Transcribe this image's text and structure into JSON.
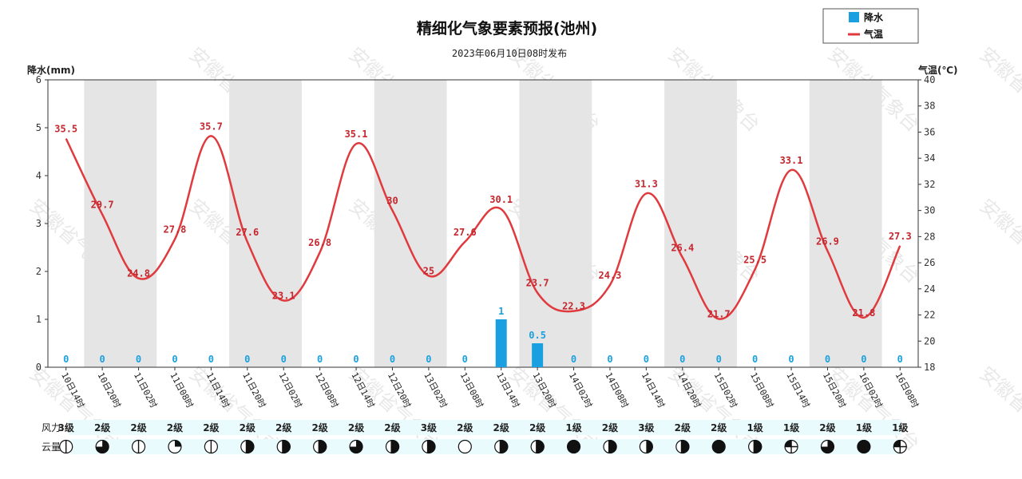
{
  "chart_data": {
    "type": "line",
    "title": "精细化气象要素预报(池州)",
    "subtitle": "2023年06月10日08时发布",
    "ylabel_left": "降水(mm)",
    "ylabel_right": "气温(℃)",
    "ylim_left": [
      0,
      6
    ],
    "ylim_right": [
      18,
      40
    ],
    "yticks_left": [
      0,
      1,
      2,
      3,
      4,
      5,
      6
    ],
    "yticks_right": [
      18,
      20,
      22,
      24,
      26,
      28,
      30,
      32,
      34,
      36,
      38,
      40
    ],
    "legend_placement": "top-right",
    "legend": [
      {
        "name": "降水",
        "color": "#1aa0e0"
      },
      {
        "name": "气温",
        "color": "#e03a3e"
      }
    ],
    "x": [
      "10日14时",
      "10日20时",
      "11日02时",
      "11日08时",
      "11日14时",
      "11日20时",
      "12日02时",
      "12日08时",
      "12日14时",
      "12日20时",
      "13日02时",
      "13日08时",
      "13日14时",
      "13日20时",
      "14日02时",
      "14日08时",
      "14日14时",
      "14日20时",
      "15日02时",
      "15日08时",
      "15日14时",
      "15日20时",
      "16日02时",
      "16日08时"
    ],
    "series": [
      {
        "name": "降水",
        "type": "bar",
        "values": [
          0,
          0,
          0,
          0,
          0,
          0,
          0,
          0,
          0,
          0,
          0,
          0,
          1,
          0.5,
          0,
          0,
          0,
          0,
          0,
          0,
          0,
          0,
          0,
          0
        ]
      },
      {
        "name": "气温",
        "type": "line",
        "values": [
          35.5,
          29.7,
          24.8,
          27.8,
          35.7,
          27.6,
          23.1,
          26.8,
          35.1,
          30,
          25,
          27.6,
          30.1,
          23.7,
          22.3,
          24.3,
          31.3,
          26.4,
          21.7,
          25.5,
          33.1,
          26.9,
          21.8,
          27.3
        ]
      }
    ],
    "night_shading": true
  },
  "rows": {
    "wind_label": "风力:",
    "cloud_label": "云量:",
    "wind": [
      "3级",
      "2级",
      "2级",
      "2级",
      "2级",
      "2级",
      "2级",
      "2级",
      "2级",
      "2级",
      "3级",
      "2级",
      "2级",
      "2级",
      "1级",
      "2级",
      "3级",
      "2级",
      "2级",
      "1级",
      "1级",
      "2级",
      "1级",
      "1级"
    ],
    "cloud": [
      "vertical-split-icon",
      "three-quarter-icon",
      "vertical-split-icon",
      "quarter-icon",
      "vertical-split-icon",
      "mostly-filled-icon",
      "mostly-filled-icon",
      "mostly-filled-icon",
      "three-quarter-icon",
      "mostly-filled-icon",
      "mostly-filled-icon",
      "clear-icon",
      "mostly-filled-icon",
      "mostly-filled-icon",
      "overcast-icon",
      "mostly-filled-icon",
      "half-icon",
      "mostly-filled-icon",
      "overcast-icon",
      "mostly-filled-icon",
      "quarter-filled-icon",
      "three-quarter-icon",
      "overcast-icon",
      "quarter-filled-icon"
    ]
  },
  "watermark": "安徽省气象台",
  "colors": {
    "rain": "#1aa0e0",
    "temp": "#e03a3e",
    "night": "#e5e5e5",
    "rowbg": "#e9fbfd"
  }
}
